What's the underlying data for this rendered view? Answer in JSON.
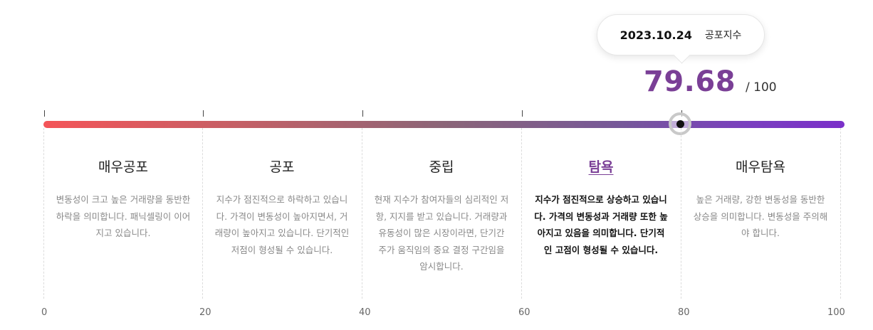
{
  "tooltip": {
    "date": "2023.10.24",
    "label": "공포지수"
  },
  "score": {
    "value": "79.68",
    "max": "/ 100",
    "level": 79.68
  },
  "colors": {
    "accent": "#7a3f96",
    "gradient_start": "#f45458",
    "gradient_end": "#7a2fc9"
  },
  "sections": [
    {
      "title": "매우공포",
      "desc": "변동성이 크고 높은 거래량을 동반한 하락을 의미합니다. 패닉셀링이 이어지고 있습니다.",
      "active": false
    },
    {
      "title": "공포",
      "desc": "지수가 점진적으로 하락하고 있습니다. 가격이 변동성이 높아지면서, 거래량이 높아지고 있습니다. 단기적인 저점이 형성될 수 있습니다.",
      "active": false
    },
    {
      "title": "중립",
      "desc": "현재 지수가 참여자들의 심리적인 저항, 지지를 받고 있습니다. 거래량과 유동성이 많은 시장이라면, 단기간 주가 움직임의 중요 결정 구간임을 암시합니다.",
      "active": false
    },
    {
      "title": "탐욕",
      "desc": "지수가 점진적으로 상승하고 있습니다. 가격의 변동성과 거래량 또한 높아지고 있음을 의미합니다. 단기적인 고점이 형성될 수 있습니다.",
      "active": true
    },
    {
      "title": "매우탐욕",
      "desc": "높은 거래량, 강한 변동성을 동반한 상승을 의미합니다. 변동성을 주의해야 합니다.",
      "active": false
    }
  ],
  "axis": [
    "0",
    "20",
    "40",
    "60",
    "80",
    "100"
  ]
}
